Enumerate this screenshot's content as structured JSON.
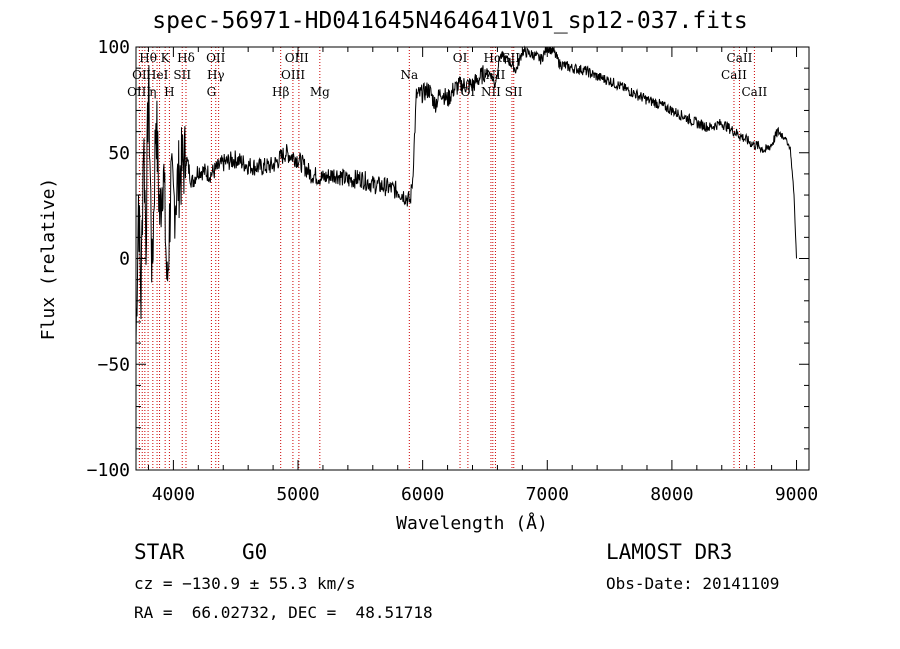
{
  "chart_data": {
    "type": "line",
    "title": "spec-56971-HD041645N464641V01_sp12-037.fits",
    "xlabel": "Wavelength (Å)",
    "ylabel": "Flux (relative)",
    "xlim": [
      3700,
      9100
    ],
    "ylim": [
      -100,
      100
    ],
    "x_ticks": [
      4000,
      5000,
      6000,
      7000,
      8000,
      9000
    ],
    "y_ticks": [
      -100,
      -50,
      0,
      50,
      100
    ],
    "series": [
      {
        "name": "spectrum",
        "x": [
          3700,
          3720,
          3740,
          3760,
          3780,
          3800,
          3830,
          3860,
          3890,
          3920,
          3950,
          3980,
          4000,
          4050,
          4100,
          4150,
          4200,
          4300,
          4400,
          4500,
          4600,
          4700,
          4800,
          4900,
          5000,
          5100,
          5200,
          5300,
          5400,
          5500,
          5600,
          5700,
          5800,
          5850,
          5900,
          5920,
          5950,
          6000,
          6050,
          6100,
          6150,
          6200,
          6250,
          6300,
          6350,
          6400,
          6450,
          6500,
          6550,
          6580,
          6620,
          6700,
          6750,
          6800,
          6850,
          6900,
          6950,
          7000,
          7050,
          7100,
          7150,
          7200,
          7300,
          7400,
          7500,
          7600,
          7700,
          7800,
          7900,
          8000,
          8100,
          8200,
          8300,
          8400,
          8500,
          8550,
          8600,
          8650,
          8700,
          8750,
          8800,
          8850,
          8900,
          8950,
          8980,
          9000
        ],
        "y": [
          -40,
          30,
          -20,
          60,
          10,
          85,
          -10,
          70,
          20,
          45,
          -15,
          35,
          25,
          40,
          48,
          36,
          42,
          40,
          45,
          47,
          44,
          43,
          44,
          50,
          47,
          40,
          38,
          40,
          37,
          38,
          35,
          34,
          32,
          30,
          27,
          38,
          77,
          78,
          80,
          73,
          79,
          75,
          80,
          82,
          82,
          82,
          85,
          88,
          87,
          82,
          96,
          93,
          89,
          98,
          97,
          96,
          94,
          100,
          98,
          92,
          91,
          90,
          89,
          86,
          84,
          81,
          78,
          75,
          73,
          70,
          67,
          64,
          62,
          64,
          60,
          58,
          56,
          54,
          53,
          51,
          54,
          60,
          58,
          52,
          30,
          0
        ]
      }
    ],
    "line_labels": [
      {
        "label": "Hθ",
        "x": 3797,
        "row": 0
      },
      {
        "label": "K",
        "x": 3934,
        "row": 0
      },
      {
        "label": "Hδ",
        "x": 4101,
        "row": 0
      },
      {
        "label": "OII",
        "x": 4340,
        "row": 0
      },
      {
        "label": "OIII",
        "x": 4990,
        "row": 0
      },
      {
        "label": "OI",
        "x": 6300,
        "row": 0
      },
      {
        "label": "Hα",
        "x": 6563,
        "row": 0
      },
      {
        "label": "SII",
        "x": 6710,
        "row": 0
      },
      {
        "label": "CaII",
        "x": 8542,
        "row": 0
      },
      {
        "label": "OI",
        "x": 3727,
        "row": 1
      },
      {
        "label": "HeI",
        "x": 3870,
        "row": 1
      },
      {
        "label": "SII",
        "x": 4071,
        "row": 1
      },
      {
        "label": "Hγ",
        "x": 4340,
        "row": 1
      },
      {
        "label": "OIII",
        "x": 4960,
        "row": 1
      },
      {
        "label": "Na",
        "x": 5893,
        "row": 1
      },
      {
        "label": "NII",
        "x": 6584,
        "row": 1
      },
      {
        "label": "CaII",
        "x": 8498,
        "row": 1
      },
      {
        "label": "OIII",
        "x": 3725,
        "row": 2
      },
      {
        "label": "η",
        "x": 3835,
        "row": 2
      },
      {
        "label": "H",
        "x": 3968,
        "row": 2
      },
      {
        "label": "G",
        "x": 4305,
        "row": 2
      },
      {
        "label": "Hβ",
        "x": 4861,
        "row": 2
      },
      {
        "label": "Mg",
        "x": 5175,
        "row": 2
      },
      {
        "label": "OI",
        "x": 6363,
        "row": 2
      },
      {
        "label": "NII",
        "x": 6548,
        "row": 2
      },
      {
        "label": "SII",
        "x": 6730,
        "row": 2
      },
      {
        "label": "CaII",
        "x": 8662,
        "row": 2
      }
    ],
    "line_markers_x": [
      3727,
      3750,
      3771,
      3797,
      3835,
      3869,
      3889,
      3934,
      3968,
      4071,
      4101,
      4305,
      4340,
      4363,
      4861,
      4959,
      5007,
      5175,
      5893,
      6300,
      6363,
      6548,
      6563,
      6584,
      6717,
      6731,
      8498,
      8542,
      8662
    ]
  },
  "info": {
    "object_class": "STAR",
    "subclass": "G0",
    "survey": "LAMOST DR3",
    "redshift": "cz = −130.9 ± 55.3 km/s",
    "obs_date": "Obs-Date: 20141109",
    "coords": "RA =  66.02732, DEC =  48.51718"
  },
  "colors": {
    "line_marker": "#cc0000",
    "axis": "#000000",
    "spectrum": "#000000"
  }
}
